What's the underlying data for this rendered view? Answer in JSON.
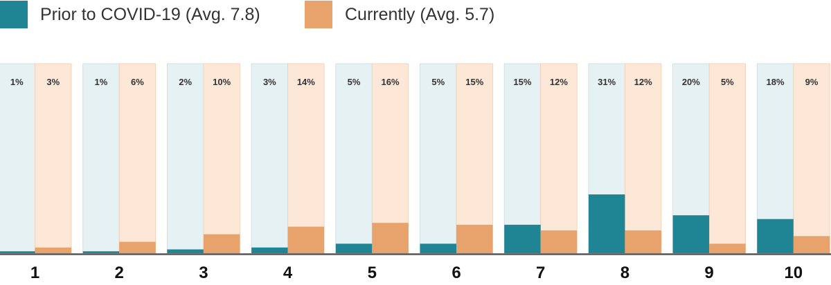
{
  "legend": {
    "prior_label": "Prior to COVID-19 (Avg. 7.8)",
    "current_label": "Currently (Avg. 5.7)"
  },
  "colors": {
    "prior": "#1f8594",
    "current": "#e8a26b",
    "prior_panel": "#e6f1f3",
    "current_panel": "#fde7d6"
  },
  "chart_data": {
    "type": "bar",
    "categories": [
      "1",
      "2",
      "3",
      "4",
      "5",
      "6",
      "7",
      "8",
      "9",
      "10"
    ],
    "series": [
      {
        "name": "Prior to COVID-19 (Avg. 7.8)",
        "values": [
          1,
          1,
          2,
          3,
          5,
          5,
          15,
          31,
          20,
          18
        ],
        "labels": [
          "1%",
          "1%",
          "2%",
          "3%",
          "5%",
          "5%",
          "15%",
          "31%",
          "20%",
          "18%"
        ]
      },
      {
        "name": "Currently (Avg. 5.7)",
        "values": [
          3,
          6,
          10,
          14,
          16,
          15,
          12,
          12,
          5,
          9
        ],
        "labels": [
          "3%",
          "6%",
          "10%",
          "14%",
          "16%",
          "15%",
          "12%",
          "12%",
          "5%",
          "9%"
        ]
      }
    ],
    "ylim": [
      0,
      100
    ],
    "unit": "%",
    "grid": false,
    "legend_position": "top-left"
  }
}
